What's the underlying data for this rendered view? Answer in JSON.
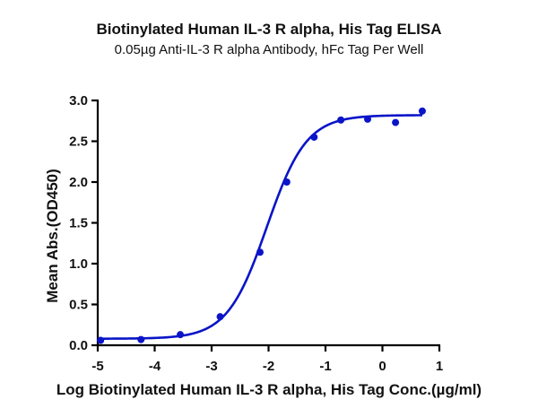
{
  "chart_data": {
    "type": "scatter",
    "title": "Biotinylated Human IL-3 R alpha, His Tag ELISA",
    "subtitle": "0.05µg Anti-IL-3 R alpha Antibody, hFc Tag Per Well",
    "xlabel": "Log Biotinylated Human IL-3 R alpha, His Tag Conc.(µg/ml)",
    "ylabel": "Mean Abs.(OD450)",
    "xlim": [
      -5,
      1
    ],
    "ylim": [
      0,
      3.0
    ],
    "xticks": [
      -5,
      -4,
      -3,
      -2,
      -1,
      0,
      1
    ],
    "xtick_labels": [
      "-5",
      "-4",
      "-3",
      "-2",
      "-1",
      "0",
      "1"
    ],
    "yticks": [
      0,
      0.5,
      1.0,
      1.5,
      2.0,
      2.5,
      3.0
    ],
    "ytick_labels": [
      "0.0",
      "0.5",
      "1.0",
      "1.5",
      "2.0",
      "2.5",
      "3.0"
    ],
    "grid": false,
    "legend": null,
    "series": [
      {
        "name": "Mean Abs.(OD450)",
        "color": "#0a14c8",
        "x": [
          -4.95,
          -4.24,
          -3.55,
          -2.85,
          -2.15,
          -1.68,
          -1.2,
          -0.73,
          -0.26,
          0.23,
          0.7
        ],
        "y": [
          0.06,
          0.07,
          0.13,
          0.35,
          1.14,
          2.0,
          2.55,
          2.76,
          2.77,
          2.73,
          2.87
        ]
      }
    ],
    "fit": {
      "model": "4PL",
      "color": "#0a14c8",
      "bottom": 0.08,
      "top": 2.82,
      "logEC50": -2.03,
      "hill": 1.25,
      "x_range": [
        -4.95,
        0.7
      ]
    }
  }
}
